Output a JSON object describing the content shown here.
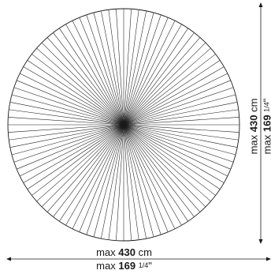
{
  "diagram": {
    "shape": "round",
    "ray_count": 96,
    "line_color": "#1a1a1a"
  },
  "dimensions": {
    "width": {
      "prefix": "max",
      "value_cm": "430",
      "unit_cm": "cm",
      "value_in": "169",
      "fraction_in": "1/4",
      "unit_in": "\""
    },
    "height": {
      "prefix": "max",
      "value_cm": "430",
      "unit_cm": "cm",
      "value_in": "169",
      "fraction_in": "1/4",
      "unit_in": "\""
    }
  }
}
